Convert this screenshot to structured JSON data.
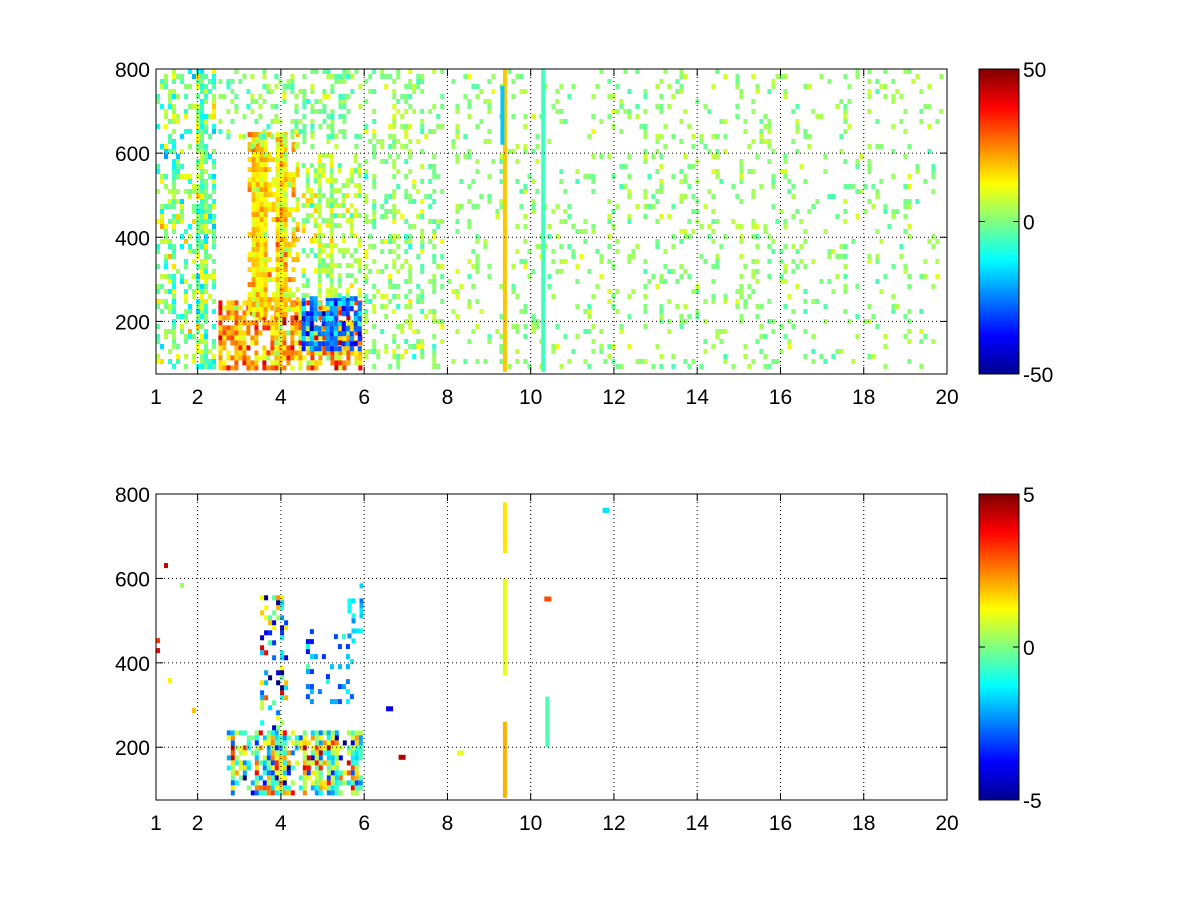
{
  "chart_data": [
    {
      "type": "heatmap",
      "title": "",
      "xlabel": "",
      "ylabel": "",
      "xlim": [
        1,
        20
      ],
      "ylim": [
        75,
        800
      ],
      "grid": true,
      "xticks": [
        1,
        2,
        4,
        6,
        8,
        10,
        12,
        14,
        16,
        18,
        20
      ],
      "yticks": [
        200,
        400,
        600,
        800
      ],
      "colormap": "jet",
      "colorbar": {
        "min": -50,
        "max": 50,
        "ticks": [
          -50,
          0,
          50
        ]
      },
      "regions": [
        {
          "x": [
            1.0,
            2.5
          ],
          "y": [
            80,
            800
          ],
          "density": 0.45,
          "mean": 0,
          "spread": 15
        },
        {
          "x": [
            2.5,
            6.0
          ],
          "y": [
            80,
            250
          ],
          "density": 0.9,
          "mean": 22,
          "spread": 18
        },
        {
          "x": [
            4.5,
            6.0
          ],
          "y": [
            120,
            260
          ],
          "density": 0.85,
          "mean": -25,
          "spread": 15
        },
        {
          "x": [
            3.2,
            4.5
          ],
          "y": [
            200,
            650
          ],
          "density": 0.6,
          "mean": 15,
          "spread": 10
        },
        {
          "x": [
            4.5,
            6.0
          ],
          "y": [
            250,
            600
          ],
          "density": 0.55,
          "mean": 5,
          "spread": 10
        },
        {
          "x": [
            2.5,
            6.0
          ],
          "y": [
            600,
            800
          ],
          "density": 0.35,
          "mean": 0,
          "spread": 8
        },
        {
          "x": [
            6.0,
            8.0
          ],
          "y": [
            80,
            800
          ],
          "density": 0.25,
          "mean": 2,
          "spread": 8
        },
        {
          "x": [
            8.0,
            20.0
          ],
          "y": [
            80,
            800
          ],
          "density": 0.12,
          "mean": 2,
          "spread": 6
        }
      ],
      "lines": [
        {
          "x": 9.38,
          "y": [
            80,
            800
          ],
          "value": 18
        },
        {
          "x": 9.32,
          "y": [
            620,
            760
          ],
          "value": -18
        },
        {
          "x": 10.3,
          "y": [
            80,
            800
          ],
          "value": -6
        }
      ]
    },
    {
      "type": "heatmap",
      "title": "",
      "xlabel": "",
      "ylabel": "",
      "xlim": [
        1,
        20
      ],
      "ylim": [
        75,
        800
      ],
      "grid": true,
      "xticks": [
        1,
        2,
        4,
        6,
        8,
        10,
        12,
        14,
        16,
        18,
        20
      ],
      "yticks": [
        200,
        400,
        600,
        800
      ],
      "colormap": "jet",
      "colorbar": {
        "min": -5,
        "max": 5,
        "ticks": [
          -5,
          0,
          5
        ]
      },
      "regions": [
        {
          "x": [
            2.7,
            6.0
          ],
          "y": [
            80,
            240
          ],
          "density": 0.7,
          "mean": 0,
          "spread": 3.5
        },
        {
          "x": [
            3.5,
            4.2
          ],
          "y": [
            240,
            560
          ],
          "density": 0.35,
          "mean": -1,
          "spread": 4
        },
        {
          "x": [
            4.6,
            5.8
          ],
          "y": [
            300,
            480
          ],
          "density": 0.25,
          "mean": -2,
          "spread": 1.5
        },
        {
          "x": [
            5.6,
            6.0
          ],
          "y": [
            440,
            600
          ],
          "density": 0.3,
          "mean": -1.5,
          "spread": 1
        },
        {
          "x": [
            1.0,
            2.0
          ],
          "y": [
            250,
            660
          ],
          "density": 0.02,
          "mean": 3,
          "spread": 2
        }
      ],
      "lines": [
        {
          "x": 9.38,
          "y": [
            80,
            260
          ],
          "value": 2
        },
        {
          "x": 9.38,
          "y": [
            370,
            600
          ],
          "value": 1
        },
        {
          "x": 9.38,
          "y": [
            660,
            780
          ],
          "value": 1.5
        },
        {
          "x": 10.4,
          "y": [
            200,
            320
          ],
          "value": -0.5
        }
      ],
      "spots": [
        {
          "x": 11.8,
          "y": 760,
          "value": -1.5
        },
        {
          "x": 10.4,
          "y": 550,
          "value": 3
        },
        {
          "x": 6.9,
          "y": 175,
          "value": 4.5
        },
        {
          "x": 6.6,
          "y": 290,
          "value": -4
        },
        {
          "x": 8.3,
          "y": 185,
          "value": 1
        }
      ]
    }
  ]
}
